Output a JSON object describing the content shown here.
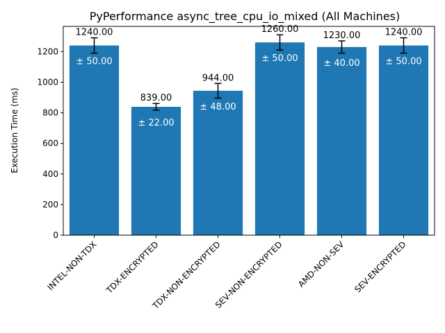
{
  "chart_data": {
    "type": "bar",
    "title": "PyPerformance async_tree_cpu_io_mixed (All Machines)",
    "xlabel": "",
    "ylabel": "Execution Time (ms)",
    "categories": [
      "INTEL-NON-TDX",
      "TDX-ENCRYPTED",
      "TDX-NON-ENCRYPTED",
      "SEV-NON-ENCRYPTED",
      "AMD-NON-SEV",
      "SEV-ENCRYPTED"
    ],
    "values": [
      1240,
      839,
      944,
      1260,
      1230,
      1240
    ],
    "errors": [
      50,
      22,
      48,
      50,
      40,
      50
    ],
    "value_labels": [
      "1240.00",
      "839.00",
      "944.00",
      "1260.00",
      "1230.00",
      "1240.00"
    ],
    "error_labels": [
      "± 50.00",
      "± 22.00",
      "± 48.00",
      "± 50.00",
      "± 40.00",
      "± 50.00"
    ],
    "ylim": [
      0,
      1365
    ],
    "yticks": [
      0,
      200,
      400,
      600,
      800,
      1000,
      1200
    ],
    "grid": false,
    "bar_color": "#1f77b4"
  }
}
